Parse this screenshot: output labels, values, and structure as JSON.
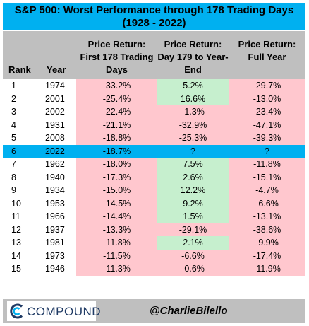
{
  "chart_data": {
    "type": "table",
    "title_line1": "S&P 500: Worst Performance through 178 Trading Days",
    "title_line2": "(1928 - 2022)",
    "headers": {
      "rank": "Rank",
      "year": "Year",
      "first": [
        "Price Return:",
        "First 178 Trading",
        "Days"
      ],
      "rest": [
        "Price Return:",
        "Day 179 to Year-",
        "End"
      ],
      "full": [
        "Price Return:",
        "Full Year"
      ]
    },
    "rows": [
      {
        "rank": "1",
        "year": "1974",
        "first": "-33.2%",
        "rest": "5.2%",
        "full": "-29.7%"
      },
      {
        "rank": "2",
        "year": "2001",
        "first": "-25.4%",
        "rest": "16.6%",
        "full": "-13.0%"
      },
      {
        "rank": "3",
        "year": "2002",
        "first": "-22.4%",
        "rest": "-1.3%",
        "full": "-23.4%"
      },
      {
        "rank": "4",
        "year": "1931",
        "first": "-21.1%",
        "rest": "-32.9%",
        "full": "-47.1%"
      },
      {
        "rank": "5",
        "year": "2008",
        "first": "-18.8%",
        "rest": "-25.3%",
        "full": "-39.3%"
      },
      {
        "rank": "6",
        "year": "2022",
        "first": "-18.7%",
        "rest": "?",
        "full": "?"
      },
      {
        "rank": "7",
        "year": "1962",
        "first": "-18.0%",
        "rest": "7.5%",
        "full": "-11.8%"
      },
      {
        "rank": "8",
        "year": "1940",
        "first": "-17.3%",
        "rest": "2.6%",
        "full": "-15.1%"
      },
      {
        "rank": "9",
        "year": "1934",
        "first": "-15.0%",
        "rest": "12.2%",
        "full": "-4.7%"
      },
      {
        "rank": "10",
        "year": "1953",
        "first": "-14.5%",
        "rest": "9.2%",
        "full": "-6.6%"
      },
      {
        "rank": "11",
        "year": "1966",
        "first": "-14.4%",
        "rest": "1.5%",
        "full": "-13.1%"
      },
      {
        "rank": "12",
        "year": "1937",
        "first": "-13.3%",
        "rest": "-29.1%",
        "full": "-38.6%"
      },
      {
        "rank": "13",
        "year": "1981",
        "first": "-11.8%",
        "rest": "2.1%",
        "full": "-9.9%"
      },
      {
        "rank": "14",
        "year": "1973",
        "first": "-11.5%",
        "rest": "-6.6%",
        "full": "-17.4%"
      },
      {
        "rank": "15",
        "year": "1946",
        "first": "-11.3%",
        "rest": "-0.6%",
        "full": "-11.9%"
      }
    ],
    "highlight_year": "2022"
  },
  "footer": {
    "logo_text": "COMPOUND",
    "handle": "@CharlieBilello"
  },
  "colors": {
    "title_bg": "#00b0f0",
    "header_bg": "#bfbfbf",
    "negative_bg": "#ffc7ce",
    "positive_bg": "#c6efce",
    "highlight_bg": "#00b0f0",
    "logo_blue": "#1f3a64"
  }
}
